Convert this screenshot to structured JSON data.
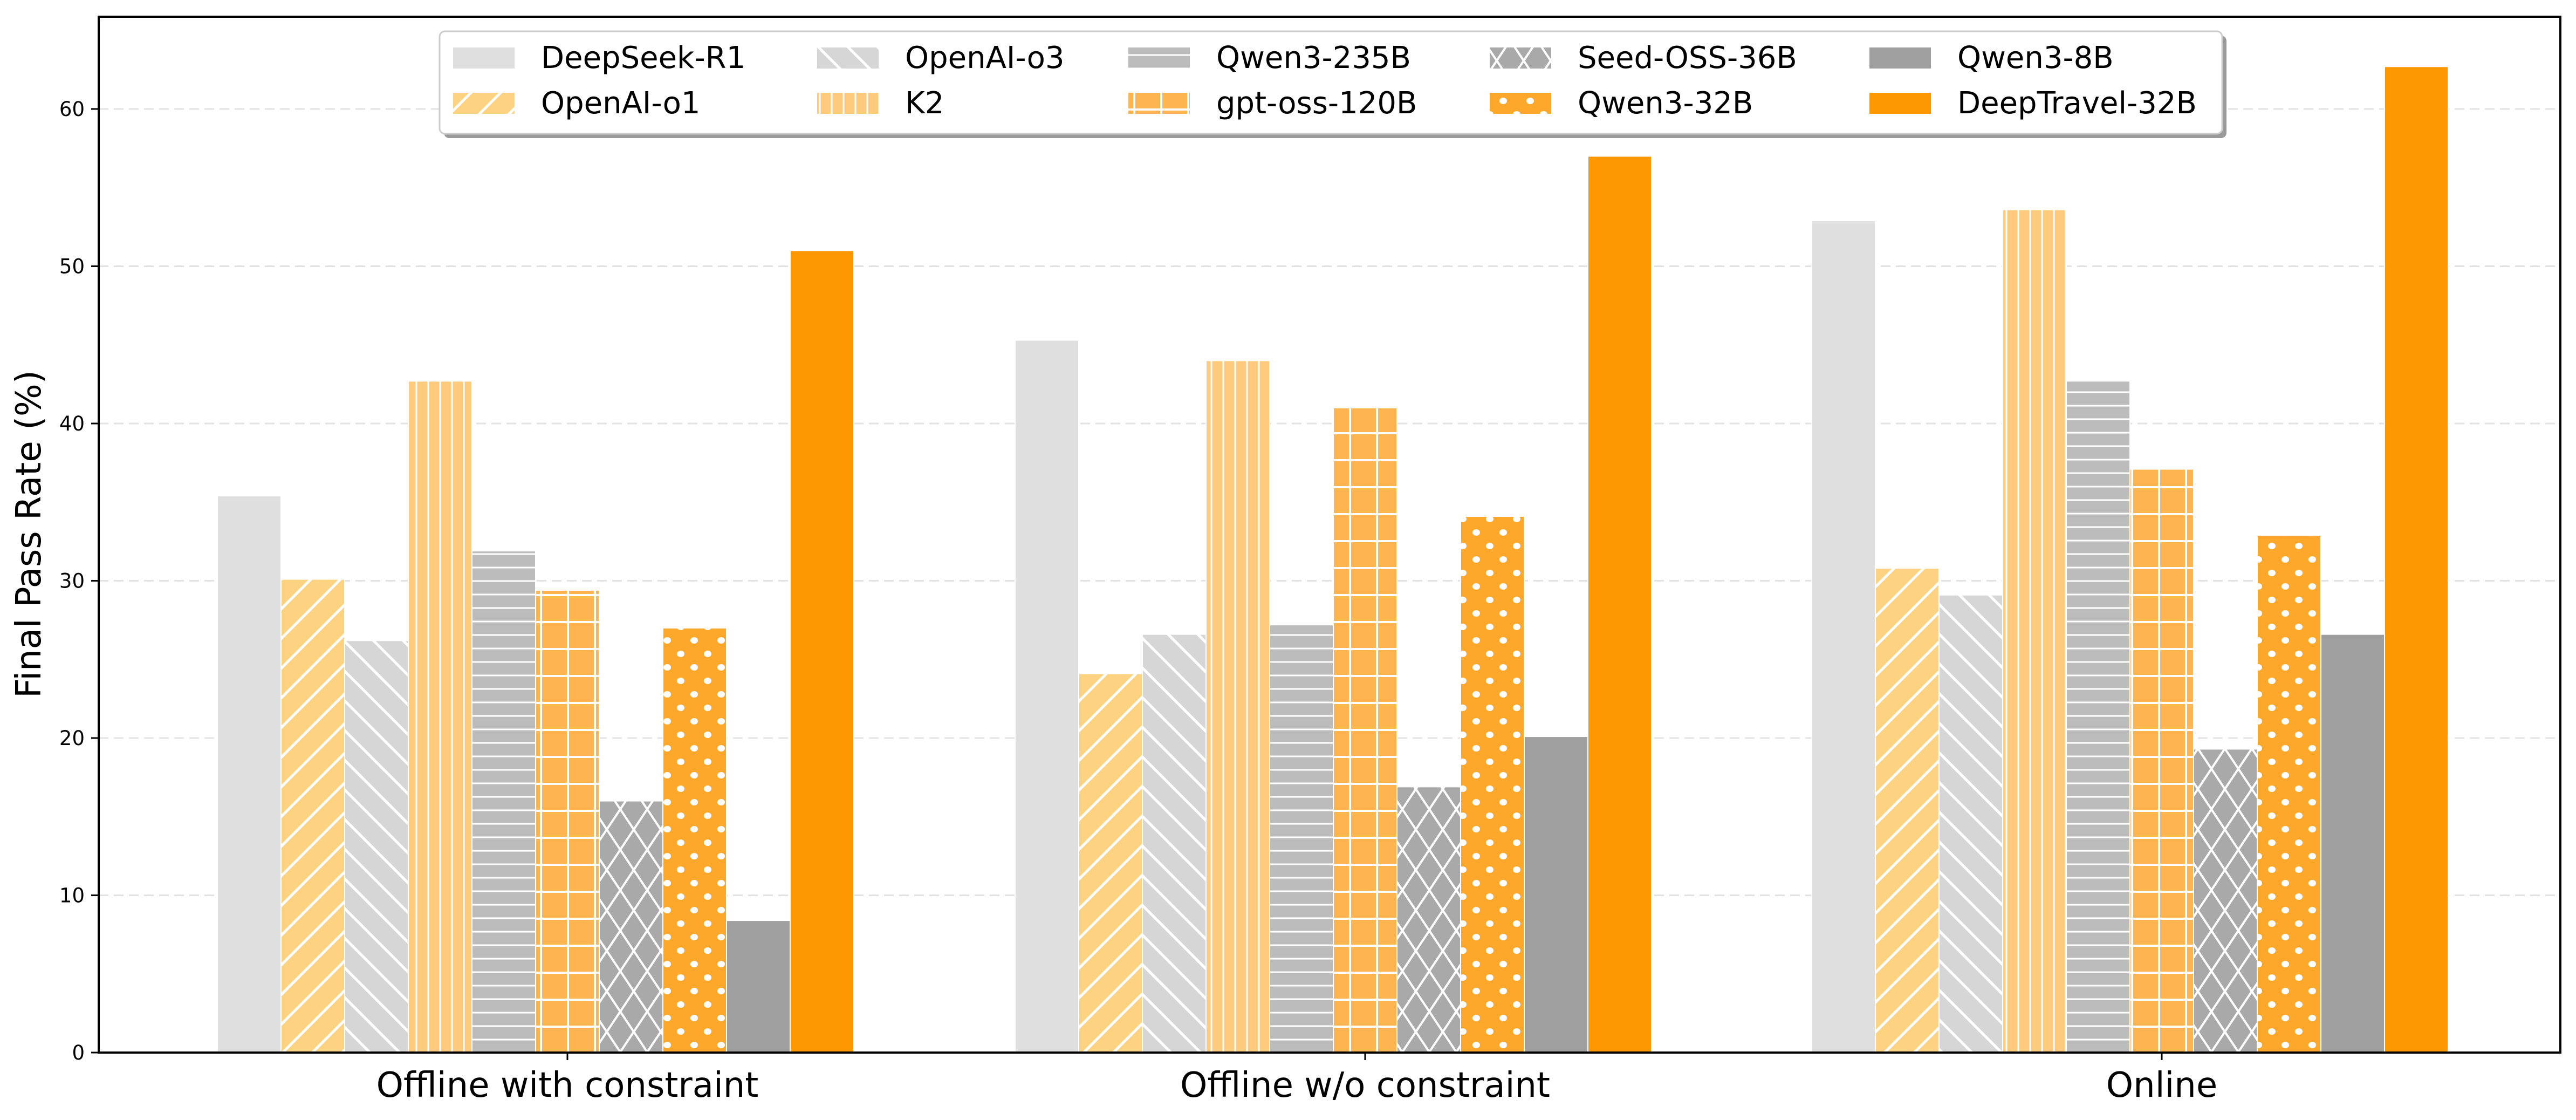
{
  "chart_data": {
    "type": "bar",
    "title": "",
    "xlabel": "",
    "ylabel": "Final Pass Rate (%)",
    "ylim": [
      0,
      65.9
    ],
    "yticks": [
      0,
      10,
      20,
      30,
      40,
      50,
      60
    ],
    "grid": "horizontal-dashed",
    "legend_position": "top-center",
    "legend_columns": 5,
    "categories": [
      "Offline with constraint",
      "Offline w/o constraint",
      "Online"
    ],
    "series": [
      {
        "name": "DeepSeek-R1",
        "color": "#DFDFDF",
        "pattern": "none",
        "values": [
          35.4,
          45.3,
          52.9
        ]
      },
      {
        "name": "OpenAI-o1",
        "color": "#FDD382",
        "pattern": "slash",
        "values": [
          30.1,
          24.1,
          30.8
        ]
      },
      {
        "name": "OpenAI-o3",
        "color": "#D6D6D6",
        "pattern": "backslash",
        "values": [
          26.2,
          26.6,
          29.1
        ]
      },
      {
        "name": "K2",
        "color": "#FECB7D",
        "pattern": "vertical",
        "values": [
          42.7,
          44.0,
          53.6
        ]
      },
      {
        "name": "Qwen3-235B",
        "color": "#BCBCBC",
        "pattern": "horizontal",
        "values": [
          31.9,
          27.2,
          42.7
        ]
      },
      {
        "name": "gpt-oss-120B",
        "color": "#FEB54F",
        "pattern": "grid",
        "values": [
          29.4,
          41.0,
          37.1
        ]
      },
      {
        "name": "Seed-OSS-36B",
        "color": "#A9A9A9",
        "pattern": "cross",
        "values": [
          16.0,
          16.9,
          19.3
        ]
      },
      {
        "name": "Qwen3-32B",
        "color": "#FEA82B",
        "pattern": "dots",
        "values": [
          27.0,
          34.1,
          32.9
        ]
      },
      {
        "name": "Qwen3-8B",
        "color": "#9F9F9F",
        "pattern": "none",
        "values": [
          8.4,
          20.1,
          26.6
        ]
      },
      {
        "name": "DeepTravel-32B",
        "color": "#FE9800",
        "pattern": "none",
        "values": [
          51.0,
          57.0,
          62.7
        ]
      }
    ]
  }
}
